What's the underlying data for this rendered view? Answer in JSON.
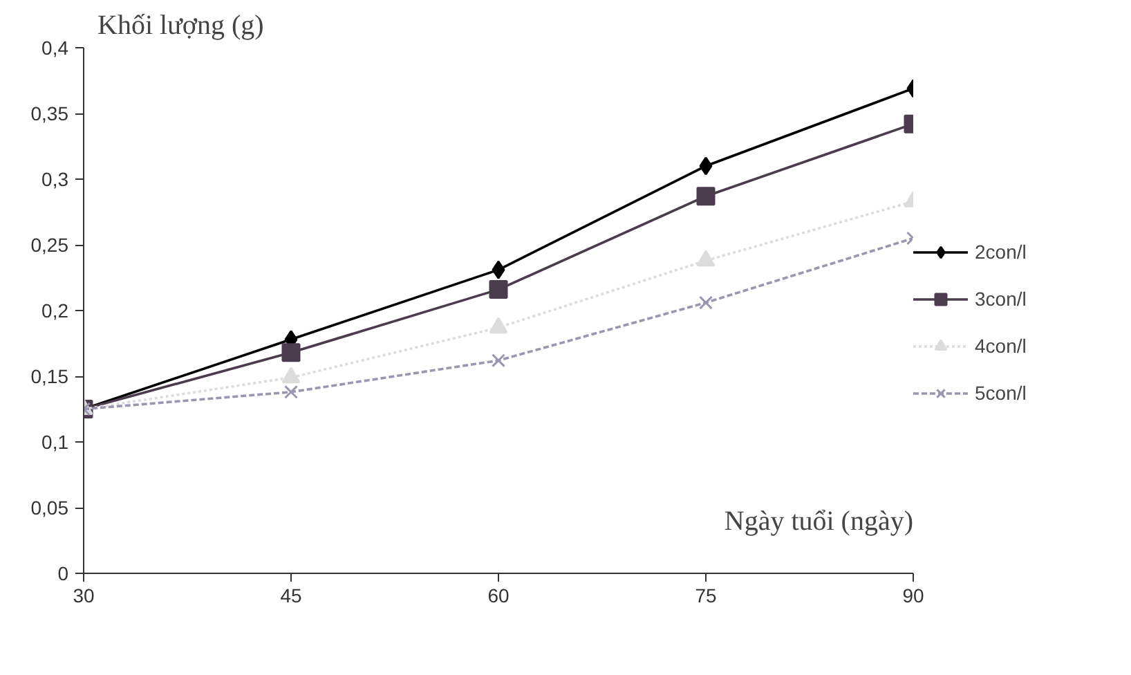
{
  "chart_data": {
    "type": "line",
    "xlabel": "Ngày tuổi (ngày)",
    "ylabel": "Khối lượng (g)",
    "x": [
      30,
      45,
      60,
      75,
      90
    ],
    "xlim": [
      30,
      90
    ],
    "xticks": [
      30,
      45,
      60,
      75,
      90
    ],
    "ylim": [
      0,
      0.4
    ],
    "yticks": [
      {
        "value": 0,
        "label": "0"
      },
      {
        "value": 0.05,
        "label": "0,05"
      },
      {
        "value": 0.1,
        "label": "0,1"
      },
      {
        "value": 0.15,
        "label": "0,15"
      },
      {
        "value": 0.2,
        "label": "0,2"
      },
      {
        "value": 0.25,
        "label": "0,25"
      },
      {
        "value": 0.3,
        "label": "0,3"
      },
      {
        "value": 0.35,
        "label": "0,35"
      },
      {
        "value": 0.4,
        "label": "0,4"
      }
    ],
    "grid": false,
    "legend": "right",
    "series": [
      {
        "name": "2con/l",
        "color": "#000000",
        "marker": "diamond",
        "line_style": "solid",
        "values": [
          0.125,
          0.178,
          0.231,
          0.31,
          0.369
        ]
      },
      {
        "name": "3con/l",
        "color": "#4a3c4c",
        "marker": "square",
        "line_style": "solid",
        "values": [
          0.125,
          0.168,
          0.216,
          0.287,
          0.342
        ]
      },
      {
        "name": "4con/l",
        "color": "#dcdcdc",
        "marker": "triangle",
        "line_style": "dotted",
        "values": [
          0.125,
          0.149,
          0.187,
          0.238,
          0.283
        ]
      },
      {
        "name": "5con/l",
        "color": "#9a96b0",
        "marker": "cross",
        "line_style": "dashed",
        "values": [
          0.125,
          0.138,
          0.162,
          0.206,
          0.255
        ]
      }
    ]
  }
}
